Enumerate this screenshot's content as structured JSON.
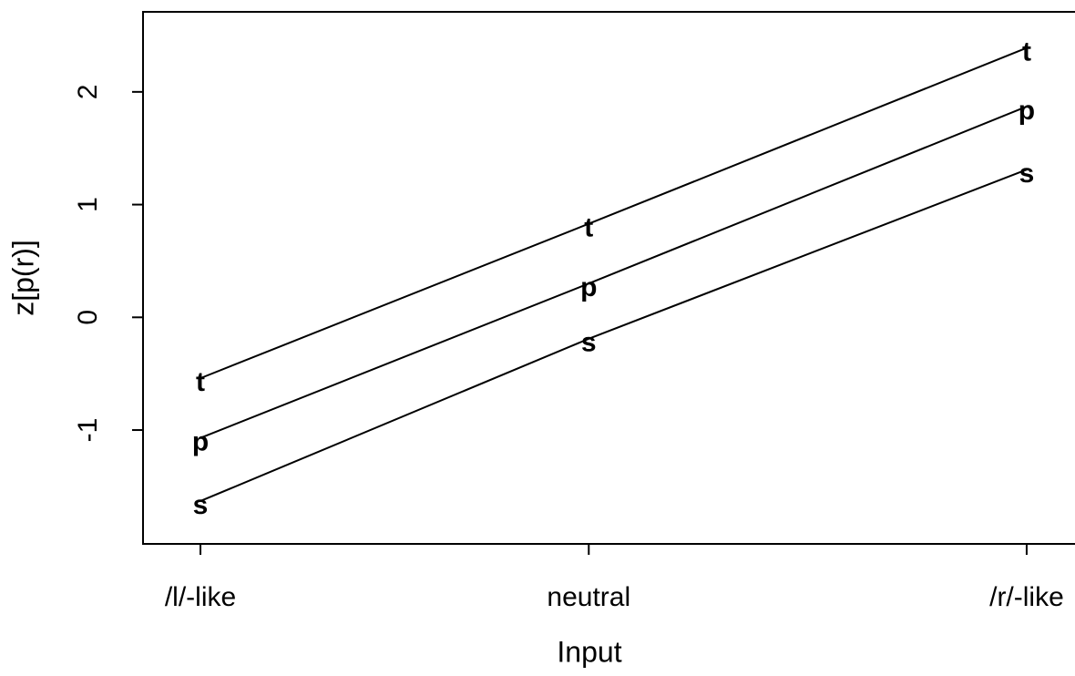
{
  "chart_data": {
    "type": "line",
    "xlabel": "Input",
    "ylabel": "z[p(r)]",
    "x": [
      1,
      1.94,
      3
    ],
    "xlim": [
      0.861,
      3.117
    ],
    "xticks": [
      {
        "value": 1,
        "label": "/l/-like"
      },
      {
        "value": 1.94,
        "label": "neutral"
      },
      {
        "value": 3,
        "label": "/r/-like"
      }
    ],
    "ylim": [
      -2.01,
      2.71
    ],
    "yticks": [
      -1,
      0,
      1,
      2
    ],
    "series": [
      {
        "name": "t",
        "color": "#000000",
        "values": [
          -0.54,
          0.83,
          2.39
        ]
      },
      {
        "name": "p",
        "color": "#000000",
        "values": [
          -1.07,
          0.3,
          1.87
        ]
      },
      {
        "name": "s",
        "color": "#000000",
        "values": [
          -1.63,
          -0.19,
          1.31
        ]
      }
    ]
  }
}
